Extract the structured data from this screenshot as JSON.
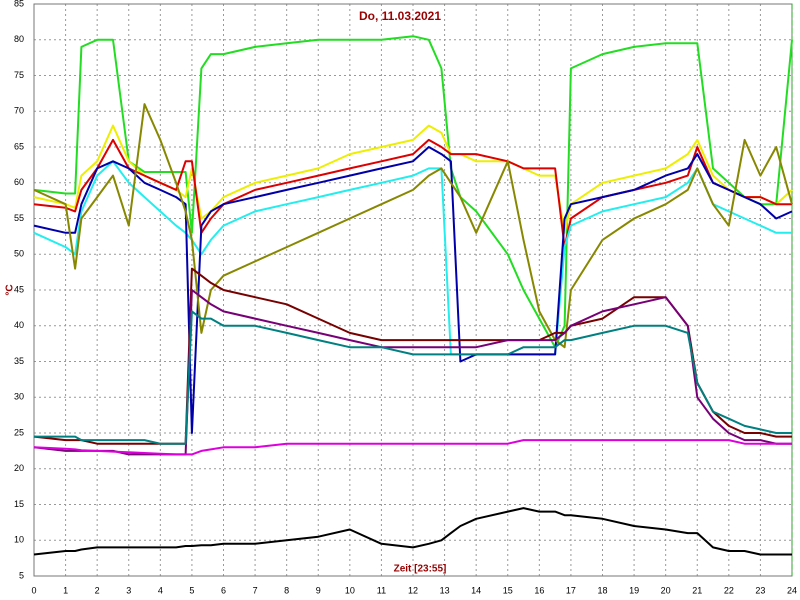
{
  "chart_data": {
    "type": "line",
    "title": "Do, 11.03.2021",
    "x_label": "Zeit [23:55]",
    "y_label": "°C",
    "x": [
      0,
      1,
      1.3,
      1.5,
      2,
      2.5,
      3,
      3.5,
      4,
      4.5,
      4.8,
      5,
      5.3,
      5.6,
      6,
      7,
      8,
      9,
      10,
      11,
      12,
      12.5,
      12.9,
      13.2,
      13.5,
      14,
      15,
      15.5,
      16,
      16.5,
      16.8,
      17,
      18,
      19,
      20,
      20.7,
      21,
      21.5,
      22,
      22.5,
      23,
      23.5,
      24
    ],
    "xlim": [
      0,
      24
    ],
    "xticks": [
      0,
      1,
      2,
      3,
      4,
      5,
      6,
      7,
      8,
      9,
      10,
      11,
      12,
      13,
      14,
      15,
      16,
      17,
      18,
      19,
      20,
      21,
      22,
      23,
      24
    ],
    "ylim": [
      5,
      85
    ],
    "yticks": [
      5,
      10,
      15,
      20,
      25,
      30,
      35,
      40,
      45,
      50,
      55,
      60,
      65,
      70,
      75,
      80,
      85
    ],
    "grid": true,
    "series": [
      {
        "color": "#22dd22",
        "values": [
          59,
          58.5,
          58.5,
          79,
          80,
          80,
          63,
          61.5,
          61.5,
          61.5,
          61.5,
          53,
          76,
          78,
          78,
          79,
          79.5,
          80,
          80,
          80,
          80.5,
          80,
          76,
          62,
          58,
          56,
          50,
          45,
          41,
          37,
          40,
          76,
          78,
          79,
          79.5,
          79.5,
          79.5,
          62,
          60,
          58,
          57,
          57,
          80
        ]
      },
      {
        "color": "#eeee00",
        "values": [
          58,
          57,
          56.5,
          61,
          63,
          68,
          63,
          61,
          60,
          59,
          58,
          62,
          55,
          56,
          58,
          60,
          61,
          62,
          64,
          65,
          66,
          68,
          67,
          64,
          64,
          63,
          63,
          62,
          61,
          61,
          53,
          57,
          60,
          61,
          62,
          64,
          66,
          61,
          59,
          58,
          58,
          57,
          59
        ]
      },
      {
        "color": "#dd0000",
        "values": [
          57,
          56.5,
          56,
          59,
          62,
          66,
          62,
          61,
          60,
          59,
          63,
          63,
          53,
          55,
          57,
          59,
          60,
          61,
          62,
          63,
          64,
          66,
          65,
          64,
          64,
          64,
          63,
          62,
          62,
          62,
          51,
          55,
          58,
          59,
          60,
          61,
          65,
          60,
          59,
          58,
          58,
          57,
          57
        ]
      },
      {
        "color": "#22eeee",
        "values": [
          53,
          51,
          50,
          56,
          61,
          63,
          60,
          58,
          56,
          54,
          53,
          52,
          50,
          52,
          54,
          56,
          57,
          58,
          59,
          60,
          61,
          62,
          62,
          36,
          36,
          36,
          36,
          36,
          36,
          36,
          51,
          54,
          56,
          57,
          58,
          60,
          62,
          57,
          56,
          55,
          54,
          53,
          53
        ]
      },
      {
        "color": "#0000aa",
        "values": [
          54,
          53,
          53,
          57,
          62,
          63,
          62,
          60,
          59,
          58,
          57,
          25,
          54,
          56,
          57,
          58,
          59,
          60,
          61,
          62,
          63,
          65,
          64,
          63,
          35,
          36,
          36,
          36,
          36,
          36,
          55,
          57,
          58,
          59,
          61,
          62,
          64,
          60,
          59,
          58,
          57,
          55,
          56
        ]
      },
      {
        "color": "#888800",
        "values": [
          59,
          57,
          48,
          55,
          58,
          61,
          54,
          71,
          66,
          60,
          56,
          52,
          39,
          45,
          47,
          49,
          51,
          53,
          55,
          57,
          59,
          61,
          62,
          60,
          58,
          53,
          63,
          52,
          42,
          38,
          37,
          45,
          52,
          55,
          57,
          59,
          62,
          57,
          54,
          66,
          61,
          65,
          57
        ]
      },
      {
        "color": "#770000",
        "values": [
          24.5,
          24,
          24,
          24,
          23.5,
          23.5,
          23.5,
          23.5,
          23.5,
          23.5,
          23.5,
          48,
          47,
          46,
          45,
          44,
          43,
          41,
          39,
          38,
          38,
          38,
          38,
          38,
          38,
          38,
          38,
          38,
          38,
          39,
          39,
          40,
          41,
          44,
          44,
          40,
          32,
          28,
          26,
          25,
          25,
          24.5,
          24.5
        ]
      },
      {
        "color": "#770077",
        "values": [
          23,
          22.5,
          22.5,
          22.5,
          22.5,
          22.5,
          22,
          22,
          22,
          22,
          22,
          45,
          44,
          43,
          42,
          41,
          40,
          39,
          38,
          37,
          37,
          37,
          37,
          37,
          37,
          37,
          38,
          38,
          38,
          38,
          39,
          40,
          42,
          43,
          44,
          40,
          30,
          27,
          25,
          24,
          24,
          23.5,
          23.5
        ]
      },
      {
        "color": "#008080",
        "values": [
          24.5,
          24.5,
          24.5,
          24,
          24,
          24,
          24,
          24,
          23.5,
          23.5,
          23.5,
          42,
          41,
          41,
          40,
          40,
          39,
          38,
          37,
          37,
          36,
          36,
          36,
          36,
          36,
          36,
          36,
          37,
          37,
          37,
          38,
          38,
          39,
          40,
          40,
          39,
          32,
          28,
          27,
          26,
          25.5,
          25,
          25
        ]
      },
      {
        "color": "#dd00dd",
        "values": [
          23,
          22.8,
          22.7,
          22.6,
          22.5,
          22.4,
          22.3,
          22.2,
          22.1,
          22,
          22,
          22,
          22.5,
          22.7,
          23,
          23,
          23.5,
          23.5,
          23.5,
          23.5,
          23.5,
          23.5,
          23.5,
          23.5,
          23.5,
          23.5,
          23.5,
          24,
          24,
          24,
          24,
          24,
          24,
          24,
          24,
          24,
          24,
          24,
          24,
          23.5,
          23.5,
          23.5,
          23.5
        ]
      },
      {
        "color": "#000000",
        "values": [
          8,
          8.5,
          8.5,
          8.7,
          9,
          9,
          9,
          9,
          9,
          9,
          9.2,
          9.2,
          9.3,
          9.3,
          9.5,
          9.5,
          10,
          10.5,
          11.5,
          9.5,
          9,
          9.5,
          10,
          11,
          12,
          13,
          14,
          14.5,
          14,
          14,
          13.5,
          13.5,
          13,
          12,
          11.5,
          11,
          11,
          9,
          8.5,
          8.5,
          8,
          8,
          8
        ]
      }
    ]
  }
}
